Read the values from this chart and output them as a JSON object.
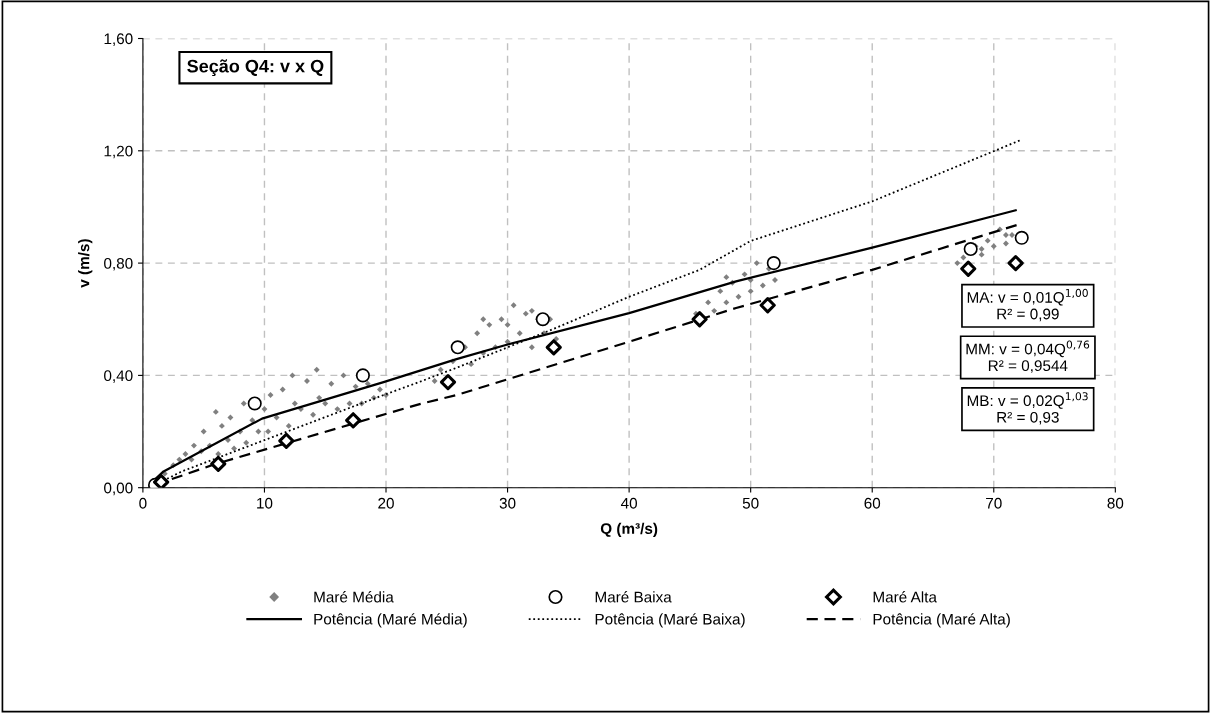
{
  "chart_data": {
    "type": "scatter",
    "title": "Seção Q4: v x Q",
    "xlabel": "Q (m³/s)",
    "ylabel": "v (m/s)",
    "xlim": [
      0,
      80
    ],
    "xticks": [
      0,
      10,
      20,
      30,
      40,
      50,
      60,
      70,
      80
    ],
    "ylim": [
      0,
      1.6
    ],
    "yticks": [
      {
        "value": 0,
        "label": "0,00"
      },
      {
        "value": 0.4,
        "label": "0,40"
      },
      {
        "value": 0.8,
        "label": "0,80"
      },
      {
        "value": 1.2,
        "label": "1,20"
      },
      {
        "value": 1.6,
        "label": "1,60"
      }
    ],
    "grid": true,
    "legend": "bottom",
    "annotations": [
      "MA: v = 0,01Q$^{1,00}$\nR² = 0,99",
      "MM: v = 0,04Q$^{0,76}$\nR² = 0,9544",
      "MB: v = 0,02Q$^{1,03}$\nR² = 0,93"
    ],
    "series": [
      {
        "name": "Maré Média",
        "marker": "diamond",
        "color": "#808080",
        "x": [
          1.8,
          2.5,
          3.0,
          3.5,
          4.0,
          4.2,
          4.8,
          5.0,
          5.5,
          6.0,
          6.2,
          6.5,
          7.0,
          7.2,
          7.5,
          8.0,
          8.3,
          8.5,
          9.0,
          9.5,
          10.0,
          10.3,
          10.5,
          11.0,
          11.5,
          12.0,
          12.3,
          12.5,
          13.0,
          13.5,
          14.0,
          14.3,
          14.5,
          15.0,
          15.5,
          16.0,
          16.5,
          17.0,
          17.5,
          18.0,
          18.5,
          19.0,
          19.5,
          20.0,
          24.0,
          24.5,
          25.5,
          26.5,
          27.0,
          27.5,
          28.0,
          28.5,
          29.0,
          29.5,
          30.0,
          30.5,
          31.0,
          31.5,
          32.0,
          32.5,
          33.0,
          33.5,
          34.0,
          28.0,
          30.0,
          32.0,
          45.5,
          46.5,
          47.0,
          47.5,
          48.0,
          48.5,
          49.0,
          49.5,
          50.0,
          50.5,
          51.0,
          51.5,
          52.0,
          48.0,
          50.0,
          67.0,
          67.5,
          68.5,
          69.0,
          69.5,
          70.0,
          70.5,
          71.0,
          71.5,
          72.0,
          69.0,
          71.0
        ],
        "values": [
          0.05,
          0.08,
          0.1,
          0.12,
          0.1,
          0.15,
          0.13,
          0.2,
          0.15,
          0.27,
          0.12,
          0.22,
          0.17,
          0.25,
          0.14,
          0.2,
          0.3,
          0.16,
          0.24,
          0.2,
          0.28,
          0.2,
          0.33,
          0.25,
          0.35,
          0.22,
          0.4,
          0.3,
          0.28,
          0.38,
          0.26,
          0.42,
          0.32,
          0.3,
          0.37,
          0.28,
          0.4,
          0.3,
          0.36,
          0.3,
          0.37,
          0.32,
          0.35,
          0.33,
          0.38,
          0.42,
          0.45,
          0.5,
          0.44,
          0.55,
          0.48,
          0.58,
          0.5,
          0.6,
          0.52,
          0.65,
          0.55,
          0.62,
          0.5,
          0.6,
          0.55,
          0.6,
          0.53,
          0.6,
          0.58,
          0.63,
          0.62,
          0.66,
          0.63,
          0.7,
          0.66,
          0.73,
          0.68,
          0.76,
          0.7,
          0.8,
          0.72,
          0.78,
          0.74,
          0.75,
          0.74,
          0.8,
          0.82,
          0.86,
          0.83,
          0.88,
          0.86,
          0.92,
          0.87,
          0.9,
          0.88,
          0.85,
          0.9
        ]
      },
      {
        "name": "Maré Baixa",
        "marker": "circle",
        "color": "#000000",
        "x": [
          1.0,
          9.2,
          18.1,
          25.9,
          32.9,
          51.9,
          68.1,
          72.3
        ],
        "values": [
          0.01,
          0.3,
          0.4,
          0.5,
          0.6,
          0.8,
          0.85,
          0.89
        ]
      },
      {
        "name": "Maré Alta",
        "marker": "diamond",
        "color": "#000000",
        "x": [
          1.5,
          6.2,
          11.8,
          17.3,
          25.1,
          33.8,
          45.8,
          51.4,
          67.9,
          71.8
        ],
        "values": [
          0.02,
          0.085,
          0.167,
          0.24,
          0.376,
          0.5,
          0.6,
          0.65,
          0.78,
          0.8
        ]
      },
      {
        "name": "Potência (Maré Média)",
        "type": "line",
        "line_style": "solid",
        "color": "#000000",
        "x": [
          1.0,
          1.7,
          9.8,
          19.8,
          25.8,
          30.0,
          40.0,
          48.8,
          60.0,
          71.8
        ],
        "values": [
          0.03,
          0.058,
          0.246,
          0.376,
          0.458,
          0.51,
          0.622,
          0.735,
          0.855,
          0.988
        ]
      },
      {
        "name": "Potência (Maré Baixa)",
        "type": "line",
        "line_style": "dotted",
        "color": "#000000",
        "x": [
          1.0,
          3.2,
          19.8,
          22.7,
          25.8,
          33.7,
          40.0,
          45.8,
          50.0,
          60.0,
          72.2
        ],
        "values": [
          0.01,
          0.058,
          0.33,
          0.376,
          0.427,
          0.564,
          0.68,
          0.776,
          0.879,
          1.02,
          1.238
        ]
      },
      {
        "name": "Potência (Maré Alta)",
        "type": "line",
        "line_style": "dashed",
        "color": "#000000",
        "x": [
          1.0,
          5.8,
          22.7,
          25.8,
          40.0,
          48.8,
          60.0,
          72.0
        ],
        "values": [
          0.01,
          0.082,
          0.297,
          0.33,
          0.52,
          0.64,
          0.776,
          0.937
        ]
      }
    ]
  }
}
